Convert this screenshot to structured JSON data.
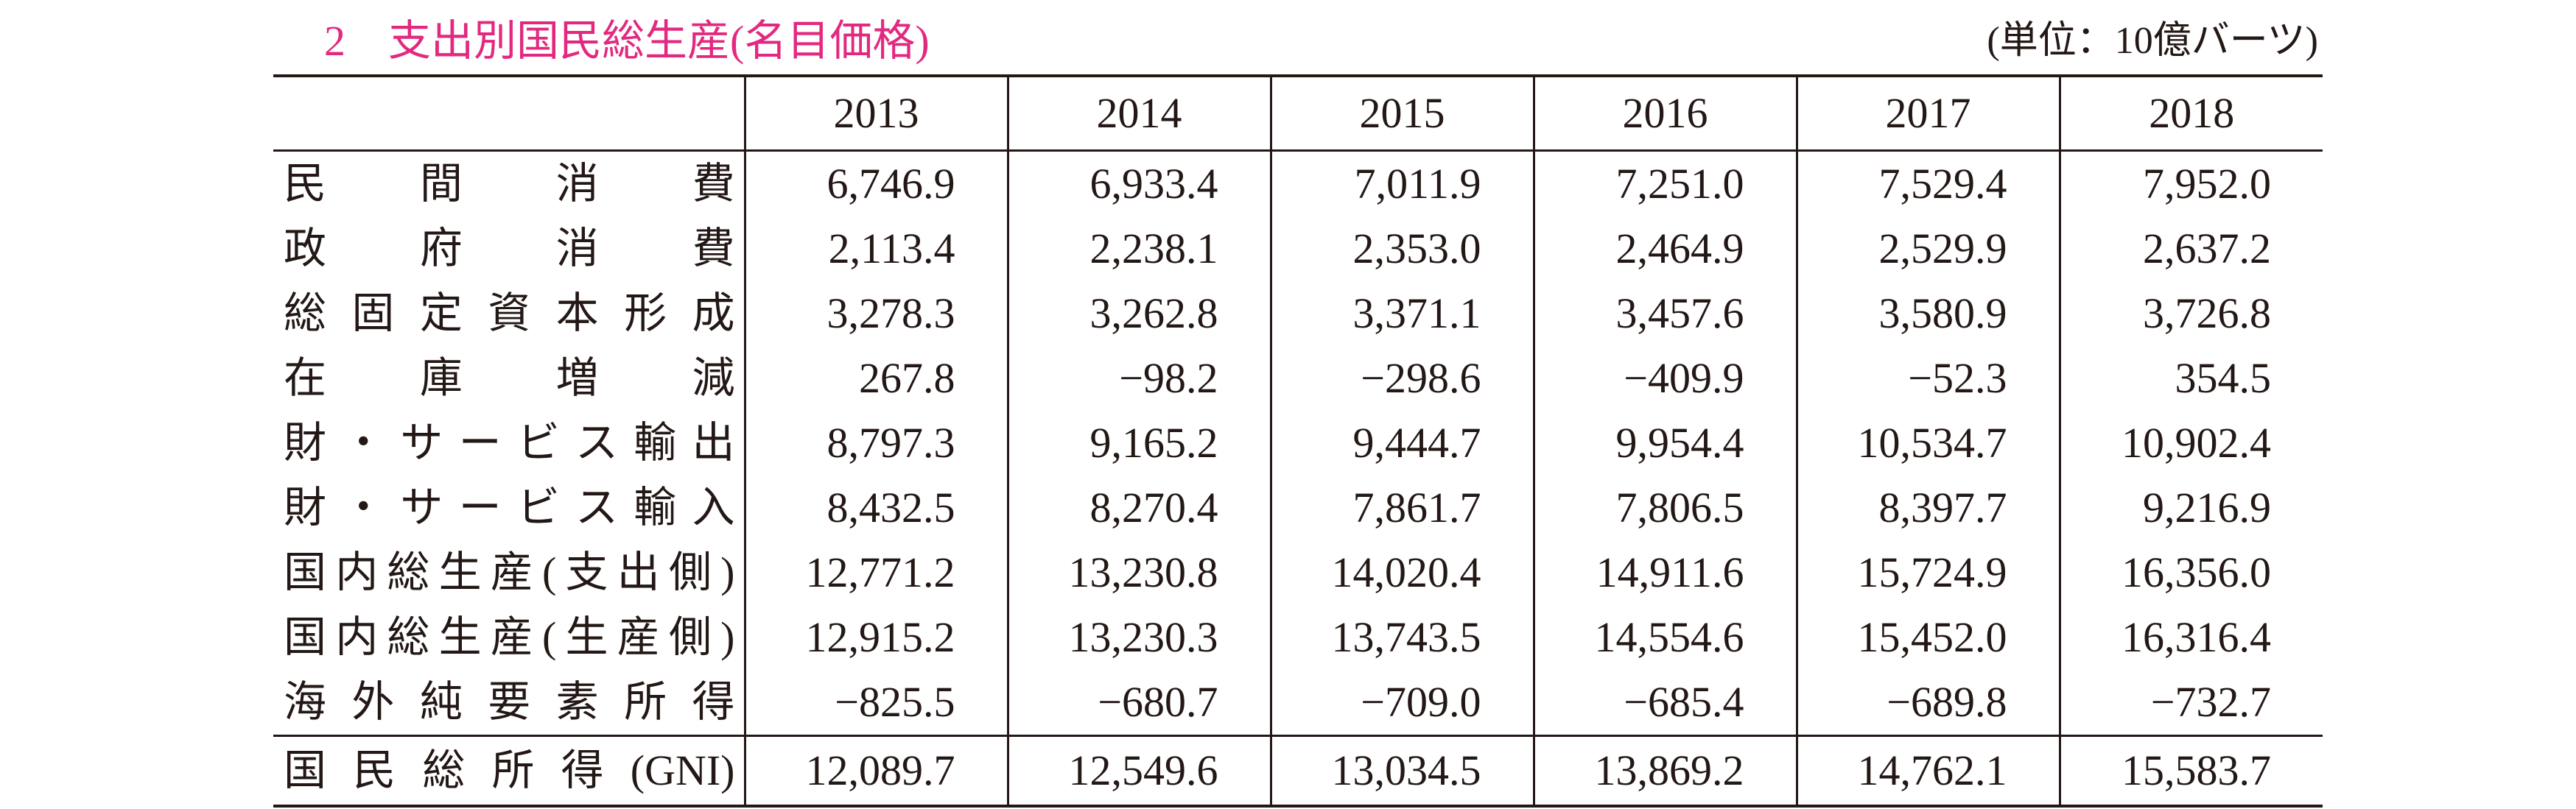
{
  "header": {
    "title": "2　支出別国民総生産(名目価格)",
    "unit": "(単位：10億バーツ)"
  },
  "table": {
    "columns": [
      "2013",
      "2014",
      "2015",
      "2016",
      "2017",
      "2018"
    ],
    "rows": [
      {
        "label": "民間消費",
        "values": [
          "6,746.9",
          "6,933.4",
          "7,011.9",
          "7,251.0",
          "7,529.4",
          "7,952.0"
        ]
      },
      {
        "label": "政府消費",
        "values": [
          "2,113.4",
          "2,238.1",
          "2,353.0",
          "2,464.9",
          "2,529.9",
          "2,637.2"
        ]
      },
      {
        "label": "総固定資本形成",
        "values": [
          "3,278.3",
          "3,262.8",
          "3,371.1",
          "3,457.6",
          "3,580.9",
          "3,726.8"
        ]
      },
      {
        "label": "在庫増減",
        "values": [
          "267.8",
          "−98.2",
          "−298.6",
          "−409.9",
          "−52.3",
          "354.5"
        ]
      },
      {
        "label": "財・サービス輸出",
        "values": [
          "8,797.3",
          "9,165.2",
          "9,444.7",
          "9,954.4",
          "10,534.7",
          "10,902.4"
        ]
      },
      {
        "label": "財・サービス輸入",
        "values": [
          "8,432.5",
          "8,270.4",
          "7,861.7",
          "7,806.5",
          "8,397.7",
          "9,216.9"
        ]
      },
      {
        "label": "国内総生産(支出側)",
        "values": [
          "12,771.2",
          "13,230.8",
          "14,020.4",
          "14,911.6",
          "15,724.9",
          "16,356.0"
        ]
      },
      {
        "label": "国内総生産(生産側)",
        "values": [
          "12,915.2",
          "13,230.3",
          "13,743.5",
          "14,554.6",
          "15,452.0",
          "16,316.4"
        ]
      },
      {
        "label": "海外純要素所得",
        "values": [
          "−825.5",
          "−680.7",
          "−709.0",
          "−685.4",
          "−689.8",
          "−732.7"
        ]
      },
      {
        "label": "国民総所得(GNI)",
        "values": [
          "12,089.7",
          "12,549.6",
          "13,034.5",
          "13,869.2",
          "14,762.1",
          "15,583.7"
        ]
      }
    ]
  }
}
